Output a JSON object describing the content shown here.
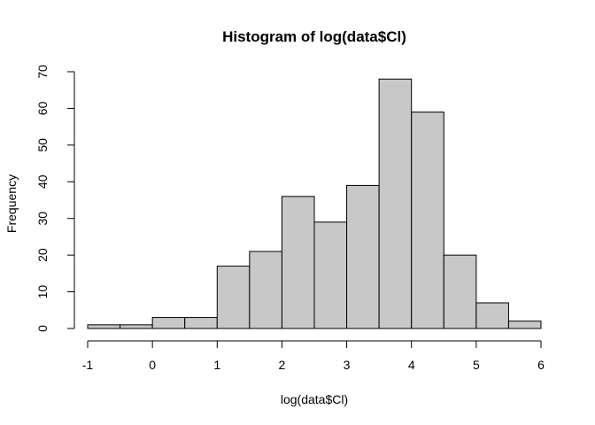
{
  "chart_data": {
    "type": "bar",
    "title": "Histogram of log(data$Cl)",
    "xlabel": "log(data$Cl)",
    "ylabel": "Frequency",
    "bin_edges": [
      -1,
      -0.5,
      0,
      0.5,
      1,
      1.5,
      2,
      2.5,
      3,
      3.5,
      4,
      4.5,
      5,
      5.5,
      6
    ],
    "values": [
      1,
      1,
      3,
      3,
      17,
      21,
      36,
      29,
      39,
      68,
      59,
      20,
      7,
      2
    ],
    "xlim": [
      -1,
      6
    ],
    "ylim": [
      0,
      70
    ],
    "x_ticks": [
      "-1",
      "0",
      "1",
      "2",
      "3",
      "4",
      "5",
      "6"
    ],
    "y_ticks": [
      "0",
      "10",
      "20",
      "30",
      "40",
      "50",
      "60",
      "70"
    ],
    "grid": false,
    "colors": {
      "bar_fill": "#c8c8c8",
      "bar_stroke": "#000000",
      "axis": "#000000"
    }
  }
}
